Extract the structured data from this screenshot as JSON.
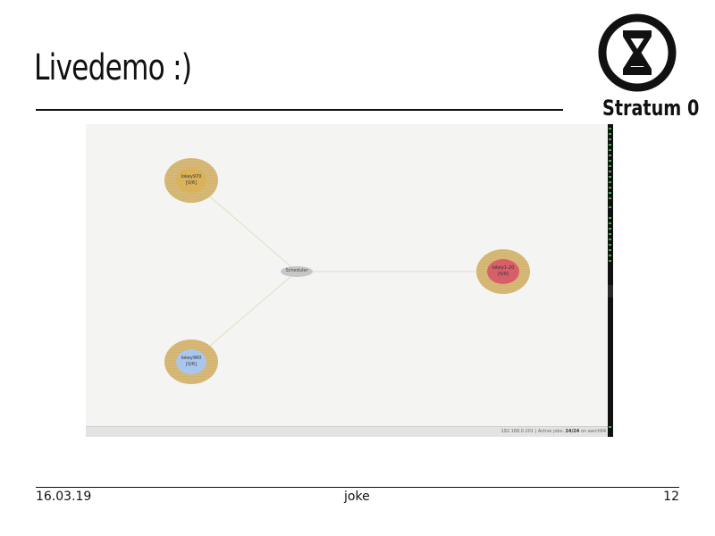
{
  "slide": {
    "title": "Livedemo :)",
    "footer": {
      "date": "16.03.19",
      "author": "joke",
      "page": "12"
    }
  },
  "logo": {
    "text": "Stratum 0",
    "icon": "hourglass-icon"
  },
  "demo": {
    "scheduler_label": "Scheduler",
    "nodes": [
      {
        "name": "lokey970",
        "jobs": "[0/6]",
        "color": "#d9b25a"
      },
      {
        "name": "lokey960",
        "jobs": "[0/6]",
        "color": "#a9c7ec"
      },
      {
        "name": "lokey1-20",
        "jobs": "[6/8]",
        "color": "#d85f6a"
      }
    ],
    "status": {
      "address": "192.168.0.201",
      "jobs_label": "Active jobs:",
      "jobs_value": "24/24",
      "host_suffix": "on aarch64"
    }
  },
  "colors": {
    "node_ring": "#d6b877",
    "edge": "#e6dcc3",
    "terminal_text": "#3fa84a"
  }
}
